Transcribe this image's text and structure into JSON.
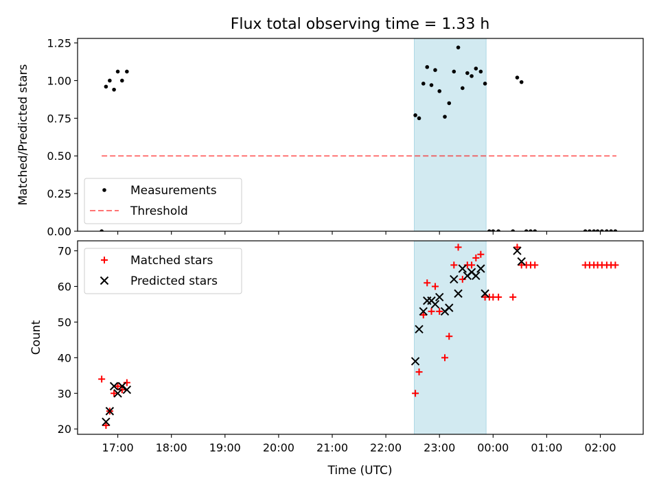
{
  "title": "Flux total observing time = 1.33 h",
  "colors": {
    "shade": "#add8e6",
    "measurement": "#000000",
    "threshold": "#ff0000",
    "matched": "#ff0000",
    "predicted": "#000000"
  },
  "x_axis": {
    "label": "Time (UTC)",
    "range_hours": [
      16.25,
      26.8
    ],
    "ticks": [
      {
        "v": 17,
        "label": "17:00"
      },
      {
        "v": 18,
        "label": "18:00"
      },
      {
        "v": 19,
        "label": "19:00"
      },
      {
        "v": 20,
        "label": "20:00"
      },
      {
        "v": 21,
        "label": "21:00"
      },
      {
        "v": 22,
        "label": "22:00"
      },
      {
        "v": 23,
        "label": "23:00"
      },
      {
        "v": 24,
        "label": "00:00"
      },
      {
        "v": 25,
        "label": "01:00"
      },
      {
        "v": 26,
        "label": "02:00"
      }
    ]
  },
  "chart_data": [
    {
      "type": "scatter",
      "ylabel": "Matched/Predicted stars",
      "ylim": [
        0,
        1.28
      ],
      "yticks": [
        {
          "v": 0,
          "label": "0.00"
        },
        {
          "v": 0.25,
          "label": "0.25"
        },
        {
          "v": 0.5,
          "label": "0.50"
        },
        {
          "v": 0.75,
          "label": "0.75"
        },
        {
          "v": 1.0,
          "label": "1.00"
        },
        {
          "v": 1.25,
          "label": "1.25"
        }
      ],
      "shaded_span": [
        22.53,
        23.87
      ],
      "legend": {
        "location": "lower-left",
        "entries": [
          "Measurements",
          "Threshold"
        ]
      },
      "series": [
        {
          "name": "Measurements",
          "x": [
            16.7,
            16.78,
            16.85,
            16.93,
            17.0,
            17.08,
            17.17,
            22.55,
            22.62,
            22.7,
            22.77,
            22.85,
            22.92,
            23.0,
            23.1,
            23.18,
            23.27,
            23.35,
            23.43,
            23.52,
            23.6,
            23.68,
            23.77,
            23.85,
            23.93,
            24.0,
            24.1,
            24.37,
            24.45,
            24.53,
            24.62,
            24.7,
            24.78,
            25.72,
            25.8,
            25.88,
            25.95,
            26.03,
            26.12,
            26.2,
            26.28
          ],
          "y": [
            0.0,
            0.96,
            1.0,
            0.94,
            1.06,
            1.0,
            1.06,
            0.77,
            0.75,
            0.98,
            1.09,
            0.97,
            1.07,
            0.93,
            0.76,
            0.85,
            1.06,
            1.22,
            0.95,
            1.05,
            1.03,
            1.08,
            1.06,
            0.98,
            0.0,
            0.0,
            0.0,
            0.0,
            1.02,
            0.99,
            0.0,
            0.0,
            0.0,
            0.0,
            0.0,
            0.0,
            0.0,
            0.0,
            0.0,
            0.0,
            0.0
          ]
        },
        {
          "name": "Threshold",
          "x": [
            16.7,
            26.3
          ],
          "y": [
            0.5,
            0.5
          ]
        }
      ]
    },
    {
      "type": "scatter",
      "ylabel": "Count",
      "ylim": [
        18.5,
        72.8
      ],
      "yticks": [
        {
          "v": 20,
          "label": "20"
        },
        {
          "v": 30,
          "label": "30"
        },
        {
          "v": 40,
          "label": "40"
        },
        {
          "v": 50,
          "label": "50"
        },
        {
          "v": 60,
          "label": "60"
        },
        {
          "v": 70,
          "label": "70"
        }
      ],
      "shaded_span": [
        22.53,
        23.87
      ],
      "legend": {
        "location": "upper-left",
        "entries": [
          "Matched stars",
          "Predicted stars"
        ]
      },
      "series": [
        {
          "name": "Matched stars",
          "x": [
            16.7,
            16.78,
            16.85,
            16.93,
            17.0,
            17.08,
            17.17,
            22.55,
            22.62,
            22.7,
            22.77,
            22.85,
            22.92,
            23.0,
            23.1,
            23.18,
            23.27,
            23.35,
            23.43,
            23.52,
            23.6,
            23.68,
            23.77,
            23.85,
            23.93,
            24.0,
            24.1,
            24.37,
            24.45,
            24.53,
            24.62,
            24.7,
            24.78,
            25.72,
            25.8,
            25.88,
            25.95,
            26.03,
            26.12,
            26.2,
            26.28
          ],
          "y": [
            34,
            21,
            25,
            30,
            32,
            31,
            33,
            30,
            36,
            52,
            61,
            53,
            60,
            53,
            40,
            46,
            66,
            71,
            62,
            66,
            66,
            68,
            69,
            57,
            57,
            57,
            57,
            57,
            71,
            66,
            66,
            66,
            66,
            66,
            66,
            66,
            66,
            66,
            66,
            66,
            66
          ]
        },
        {
          "name": "Predicted stars",
          "x": [
            16.78,
            16.85,
            16.93,
            17.0,
            17.08,
            17.17,
            22.55,
            22.62,
            22.7,
            22.77,
            22.85,
            22.92,
            23.0,
            23.1,
            23.18,
            23.27,
            23.35,
            23.43,
            23.52,
            23.6,
            23.68,
            23.77,
            23.85,
            24.45,
            24.53
          ],
          "y": [
            22,
            25,
            32,
            30,
            32,
            31,
            39,
            48,
            53,
            56,
            56,
            55,
            57,
            53,
            54,
            62,
            58,
            65,
            63,
            64,
            63,
            65,
            58,
            70,
            67
          ]
        }
      ]
    }
  ]
}
